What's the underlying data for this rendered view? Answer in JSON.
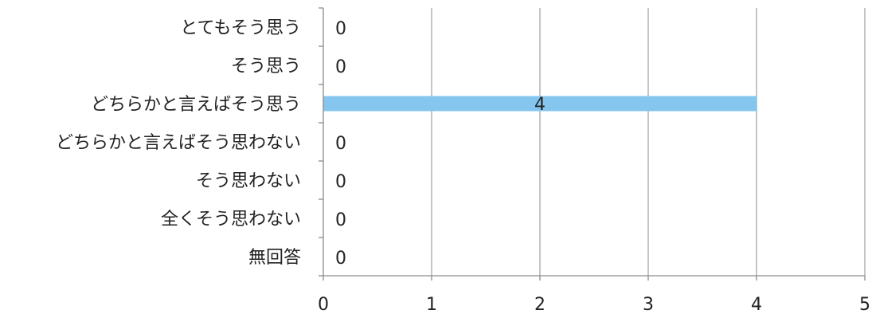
{
  "chart_data": {
    "type": "bar",
    "orientation": "horizontal",
    "categories": [
      "とてもそう思う",
      "そう思う",
      "どちらかと言えばそう思う",
      "どちらかと言えばそう思わない",
      "そう思わない",
      "全くそう思わない",
      "無回答"
    ],
    "values": [
      0,
      0,
      4,
      0,
      0,
      0,
      0
    ],
    "data_labels": [
      "0",
      "0",
      "4",
      "0",
      "0",
      "0",
      "0"
    ],
    "xlim": [
      0,
      5
    ],
    "xticks": [
      "0",
      "1",
      "2",
      "3",
      "4",
      "5"
    ],
    "grid": true,
    "legend": "none",
    "bar_color": "#85C6EE",
    "grid_color": "#A6A6A6",
    "axis_color": "#8C8C8C"
  }
}
